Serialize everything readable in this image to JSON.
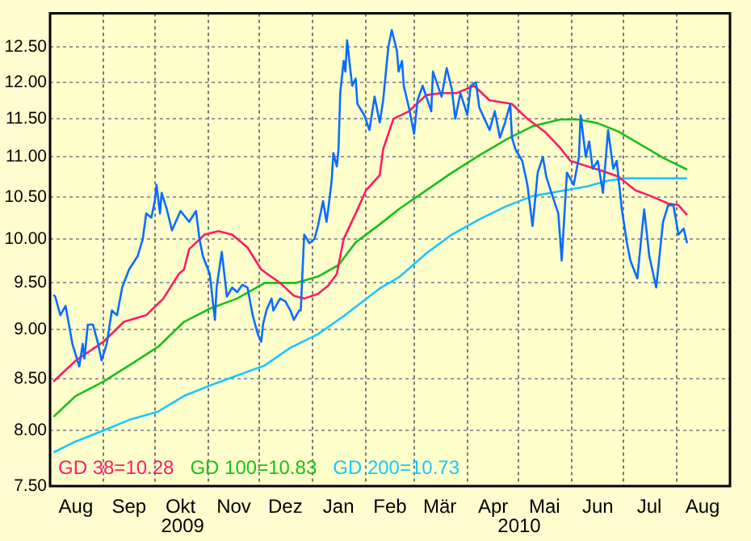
{
  "chart_data": {
    "type": "line",
    "log": "y",
    "grid": true,
    "legend": "bottom left",
    "xlim": [
      "2009-08-01",
      "2010-09-01"
    ],
    "ylim": [
      7.5,
      13.0
    ],
    "yticks": [
      {
        "value": 7.5,
        "label": "7.50"
      },
      {
        "value": 8,
        "label": "8.00"
      },
      {
        "value": 8.5,
        "label": "8.50"
      },
      {
        "value": 9,
        "label": "9.00"
      },
      {
        "value": 9.5,
        "label": "9.50"
      },
      {
        "value": 10,
        "label": "10.00"
      },
      {
        "value": 10.5,
        "label": "10.50"
      },
      {
        "value": 11,
        "label": "11.00"
      },
      {
        "value": 11.5,
        "label": "11.50"
      },
      {
        "value": 12,
        "label": "12.00"
      },
      {
        "value": 12.5,
        "label": "12.50"
      }
    ],
    "xticks": [
      {
        "value": "2009-08-16",
        "label": "Aug"
      },
      {
        "value": "2009-09-01",
        "label": null
      },
      {
        "value": "2009-09-16",
        "label": "Sep"
      },
      {
        "value": "2009-10-01",
        "label": null
      },
      {
        "value": "2009-10-16",
        "label": "Okt"
      },
      {
        "value": "2009-11-01",
        "label": null
      },
      {
        "value": "2009-11-16",
        "label": "Nov"
      },
      {
        "value": "2009-12-01",
        "label": null
      },
      {
        "value": "2009-12-16",
        "label": "Dez"
      },
      {
        "value": "2010-01-01",
        "label": null
      },
      {
        "value": "2010-01-16",
        "label": "Jan"
      },
      {
        "value": "2010-02-01",
        "label": null
      },
      {
        "value": "2010-02-15",
        "label": "Feb"
      },
      {
        "value": "2010-03-01",
        "label": null
      },
      {
        "value": "2010-03-16",
        "label": "Mär"
      },
      {
        "value": "2010-04-01",
        "label": null
      },
      {
        "value": "2010-04-16",
        "label": "Apr"
      },
      {
        "value": "2010-05-01",
        "label": null
      },
      {
        "value": "2010-05-16",
        "label": "Mai"
      },
      {
        "value": "2010-06-01",
        "label": null
      },
      {
        "value": "2010-06-16",
        "label": "Jun"
      },
      {
        "value": "2010-07-01",
        "label": null
      },
      {
        "value": "2010-07-16",
        "label": "Jul"
      },
      {
        "value": "2010-08-01",
        "label": null
      },
      {
        "value": "2010-08-16",
        "label": "Aug"
      }
    ],
    "annotations": [
      "2009",
      "2010"
    ],
    "series": [
      {
        "color": "#0a6cff",
        "x": [
          "2009-08-03",
          "2009-08-04",
          "2009-08-07",
          "2009-08-10",
          "2009-08-12",
          "2009-08-14",
          "2009-08-18",
          "2009-08-20",
          "2009-08-21",
          "2009-08-23",
          "2009-08-26",
          "2009-08-29",
          "2009-08-31",
          "2009-09-03",
          "2009-09-06",
          "2009-09-09",
          "2009-09-12",
          "2009-09-16",
          "2009-09-21",
          "2009-09-24",
          "2009-09-26",
          "2009-09-29",
          "2009-10-01",
          "2009-10-02",
          "2009-10-04",
          "2009-10-05",
          "2009-10-08",
          "2009-10-11",
          "2009-10-16",
          "2009-10-21",
          "2009-10-25",
          "2009-10-27",
          "2009-10-29",
          "2009-11-02",
          "2009-11-05",
          "2009-11-06",
          "2009-11-09",
          "2009-11-12",
          "2009-11-15",
          "2009-11-18",
          "2009-11-21",
          "2009-11-24",
          "2009-11-27",
          "2009-11-30",
          "2009-12-02",
          "2009-12-03",
          "2009-12-05",
          "2009-12-08",
          "2009-12-09",
          "2009-12-13",
          "2009-12-16",
          "2009-12-19",
          "2009-12-21",
          "2009-12-24",
          "2009-12-25",
          "2009-12-27",
          "2009-12-30",
          "2010-01-02",
          "2010-01-04",
          "2010-01-07",
          "2010-01-09",
          "2010-01-10",
          "2010-01-12",
          "2010-01-13",
          "2010-01-15",
          "2010-01-16",
          "2010-01-17",
          "2010-01-19",
          "2010-01-20",
          "2010-01-21",
          "2010-01-23",
          "2010-01-24",
          "2010-01-26",
          "2010-01-27",
          "2010-01-31",
          "2010-02-03",
          "2010-02-06",
          "2010-02-09",
          "2010-02-11",
          "2010-02-14",
          "2010-02-16",
          "2010-02-19",
          "2010-02-20",
          "2010-02-22",
          "2010-02-23",
          "2010-02-26",
          "2010-03-01",
          "2010-03-03",
          "2010-03-06",
          "2010-03-11",
          "2010-03-12",
          "2010-03-17",
          "2010-03-20",
          "2010-03-23",
          "2010-03-25",
          "2010-03-28",
          "2010-04-01",
          "2010-04-03",
          "2010-04-06",
          "2010-04-08",
          "2010-04-11",
          "2010-04-14",
          "2010-04-17",
          "2010-04-20",
          "2010-04-23",
          "2010-04-26",
          "2010-04-27",
          "2010-04-29",
          "2010-05-03",
          "2010-05-06",
          "2010-05-09",
          "2010-05-12",
          "2010-05-15",
          "2010-05-17",
          "2010-05-20",
          "2010-05-24",
          "2010-05-26",
          "2010-05-29",
          "2010-06-02",
          "2010-06-05",
          "2010-06-06",
          "2010-06-09",
          "2010-06-11",
          "2010-06-13",
          "2010-06-16",
          "2010-06-19",
          "2010-06-22",
          "2010-06-25",
          "2010-06-27",
          "2010-06-30",
          "2010-07-03",
          "2010-07-05",
          "2010-07-09",
          "2010-07-13",
          "2010-07-16",
          "2010-07-20",
          "2010-07-24",
          "2010-07-27",
          "2010-07-30",
          "2010-08-02",
          "2010-08-05",
          "2010-08-07"
        ],
        "values": [
          9.37,
          9.35,
          9.15,
          9.25,
          9.05,
          8.85,
          8.62,
          8.85,
          8.7,
          9.05,
          9.05,
          8.85,
          8.68,
          8.85,
          9.2,
          9.15,
          9.45,
          9.65,
          9.8,
          10.0,
          10.3,
          10.25,
          10.45,
          10.65,
          10.3,
          10.55,
          10.35,
          10.1,
          10.33,
          10.2,
          10.33,
          10.0,
          9.8,
          9.6,
          9.1,
          9.45,
          9.85,
          9.35,
          9.45,
          9.4,
          9.48,
          9.45,
          9.15,
          8.95,
          8.87,
          9.05,
          9.2,
          9.33,
          9.2,
          9.33,
          9.3,
          9.2,
          9.1,
          9.2,
          9.2,
          10.05,
          9.95,
          10.0,
          10.15,
          10.45,
          10.2,
          10.35,
          10.7,
          11.05,
          10.88,
          11.1,
          11.85,
          12.3,
          12.15,
          12.6,
          12.15,
          11.95,
          12.05,
          11.7,
          11.55,
          11.35,
          11.8,
          11.45,
          11.75,
          12.5,
          12.75,
          12.45,
          12.15,
          12.3,
          11.95,
          11.65,
          11.3,
          11.75,
          11.95,
          11.6,
          12.15,
          11.8,
          12.2,
          11.9,
          11.5,
          11.85,
          11.55,
          11.95,
          12.0,
          11.65,
          11.5,
          11.35,
          11.6,
          11.25,
          11.45,
          11.7,
          11.25,
          11.1,
          10.95,
          10.65,
          10.15,
          10.8,
          11.0,
          10.75,
          10.55,
          10.3,
          9.75,
          10.8,
          10.65,
          11.0,
          11.55,
          11.0,
          11.2,
          10.85,
          10.95,
          10.55,
          11.35,
          10.85,
          10.95,
          10.35,
          9.95,
          9.75,
          9.55,
          10.35,
          9.8,
          9.45,
          10.2,
          10.4,
          10.4,
          10.05,
          10.12,
          9.95
        ]
      },
      {
        "name": "GD 38=10.28",
        "color": "#ff1a66",
        "x": [
          "2009-08-03",
          "2009-08-16",
          "2009-09-01",
          "2009-09-13",
          "2009-09-26",
          "2009-10-06",
          "2009-10-15",
          "2009-10-18",
          "2009-10-21",
          "2009-10-30",
          "2009-11-07",
          "2009-11-15",
          "2009-11-24",
          "2009-12-02",
          "2009-12-07",
          "2009-12-13",
          "2009-12-21",
          "2009-12-27",
          "2010-01-04",
          "2010-01-10",
          "2010-01-15",
          "2010-01-19",
          "2010-01-26",
          "2010-02-01",
          "2010-02-09",
          "2010-02-11",
          "2010-02-17",
          "2010-02-26",
          "2010-03-08",
          "2010-03-17",
          "2010-03-26",
          "2010-04-05",
          "2010-04-14",
          "2010-04-27",
          "2010-05-06",
          "2010-05-16",
          "2010-05-25",
          "2010-05-31",
          "2010-06-10",
          "2010-06-19",
          "2010-06-28",
          "2010-07-08",
          "2010-07-17",
          "2010-07-27",
          "2010-08-02",
          "2010-08-07"
        ],
        "values": [
          8.47,
          8.68,
          8.87,
          9.08,
          9.15,
          9.33,
          9.6,
          9.65,
          9.88,
          10.05,
          10.09,
          10.05,
          9.9,
          9.65,
          9.58,
          9.5,
          9.36,
          9.33,
          9.38,
          9.47,
          9.6,
          10.0,
          10.3,
          10.58,
          10.77,
          11.1,
          11.5,
          11.6,
          11.82,
          11.85,
          11.85,
          11.95,
          11.75,
          11.7,
          11.5,
          11.33,
          11.12,
          10.95,
          10.88,
          10.82,
          10.75,
          10.58,
          10.51,
          10.42,
          10.4,
          10.28
        ]
      },
      {
        "name": "GD 100=10.83",
        "color": "#16c216",
        "x": [
          "2009-08-03",
          "2009-08-16",
          "2009-09-01",
          "2009-09-16",
          "2009-10-03",
          "2009-10-18",
          "2009-11-02",
          "2009-11-18",
          "2009-12-04",
          "2009-12-22",
          "2010-01-04",
          "2010-01-16",
          "2010-01-26",
          "2010-02-09",
          "2010-02-20",
          "2010-03-08",
          "2010-03-23",
          "2010-04-08",
          "2010-04-24",
          "2010-05-09",
          "2010-05-25",
          "2010-06-05",
          "2010-06-16",
          "2010-06-28",
          "2010-07-11",
          "2010-07-24",
          "2010-08-07"
        ],
        "values": [
          8.13,
          8.33,
          8.47,
          8.63,
          8.82,
          9.08,
          9.22,
          9.33,
          9.5,
          9.5,
          9.57,
          9.7,
          9.96,
          10.17,
          10.35,
          10.58,
          10.8,
          11.02,
          11.23,
          11.4,
          11.49,
          11.49,
          11.44,
          11.33,
          11.16,
          10.99,
          10.84
        ]
      },
      {
        "name": "GD 200=10.73",
        "color": "#1ac6ff",
        "x": [
          "2009-08-03",
          "2009-08-16",
          "2009-09-01",
          "2009-09-16",
          "2009-10-03",
          "2009-10-18",
          "2009-11-02",
          "2009-11-18",
          "2009-12-04",
          "2009-12-19",
          "2010-01-04",
          "2010-01-19",
          "2010-02-09",
          "2010-02-20",
          "2010-03-08",
          "2010-03-23",
          "2010-04-08",
          "2010-04-24",
          "2010-05-09",
          "2010-05-25",
          "2010-06-10",
          "2010-06-22",
          "2010-07-02",
          "2010-07-11",
          "2010-08-07"
        ],
        "values": [
          7.8,
          7.9,
          8.0,
          8.1,
          8.18,
          8.33,
          8.43,
          8.53,
          8.63,
          8.81,
          8.95,
          9.14,
          9.44,
          9.56,
          9.83,
          10.05,
          10.23,
          10.39,
          10.51,
          10.57,
          10.63,
          10.7,
          10.73,
          10.73,
          10.73
        ]
      }
    ]
  }
}
